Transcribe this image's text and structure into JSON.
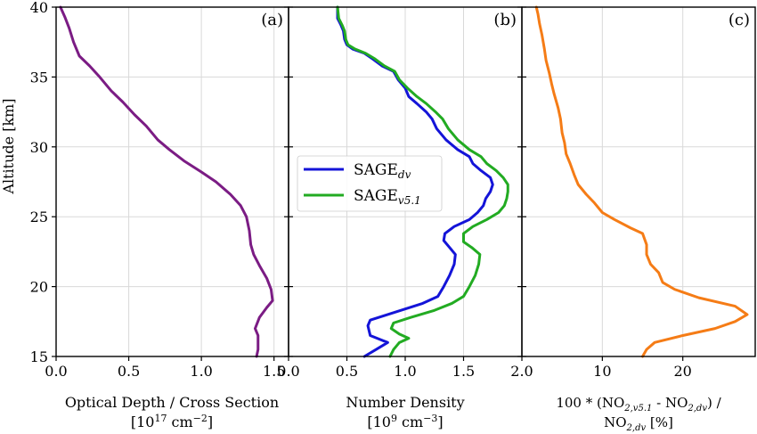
{
  "chart_data": [
    {
      "type": "line",
      "panel_label": "(a)",
      "xlabel_line1": "Optical Depth / Cross Section",
      "xlabel_line2": "[10",
      "xlabel_line2_sup": "17",
      "xlabel_line2_after": " cm",
      "xlabel_line2_sup2": "−2",
      "xlabel_line2_end": "]",
      "ylabel": "Altitude [km]",
      "xlim": [
        0.0,
        1.6
      ],
      "ylim": [
        15,
        40
      ],
      "xticks": [
        0.0,
        0.5,
        1.0,
        1.5
      ],
      "xtick_labels": [
        "0.0",
        "0.5",
        "1.0",
        "1.5"
      ],
      "yticks": [
        15,
        20,
        25,
        30,
        35,
        40
      ],
      "ytick_labels": [
        "15",
        "20",
        "25",
        "30",
        "35",
        "40"
      ],
      "grid": true,
      "series": [
        {
          "color": "#7b1c84",
          "points": [
            [
              1.38,
              15.0
            ],
            [
              1.39,
              15.5
            ],
            [
              1.39,
              16.5
            ],
            [
              1.37,
              17.0
            ],
            [
              1.4,
              17.8
            ],
            [
              1.45,
              18.5
            ],
            [
              1.49,
              19.0
            ],
            [
              1.48,
              19.8
            ],
            [
              1.45,
              20.6
            ],
            [
              1.4,
              21.5
            ],
            [
              1.36,
              22.3
            ],
            [
              1.34,
              23.0
            ],
            [
              1.33,
              24.0
            ],
            [
              1.31,
              25.0
            ],
            [
              1.27,
              25.8
            ],
            [
              1.2,
              26.6
            ],
            [
              1.1,
              27.5
            ],
            [
              1.0,
              28.2
            ],
            [
              0.88,
              29.0
            ],
            [
              0.78,
              29.8
            ],
            [
              0.7,
              30.5
            ],
            [
              0.62,
              31.5
            ],
            [
              0.54,
              32.3
            ],
            [
              0.46,
              33.2
            ],
            [
              0.38,
              34.0
            ],
            [
              0.3,
              35.0
            ],
            [
              0.23,
              35.8
            ],
            [
              0.16,
              36.5
            ],
            [
              0.12,
              37.5
            ],
            [
              0.09,
              38.5
            ],
            [
              0.06,
              39.3
            ],
            [
              0.03,
              40.0
            ]
          ]
        }
      ]
    },
    {
      "type": "line",
      "panel_label": "(b)",
      "xlabel_line1": "Number Density",
      "xlabel_line2": "[10",
      "xlabel_line2_sup": "9",
      "xlabel_line2_after": " cm",
      "xlabel_line2_sup2": "−3",
      "xlabel_line2_end": "]",
      "xlim": [
        0.0,
        2.0
      ],
      "ylim": [
        15,
        40
      ],
      "xticks": [
        0.0,
        0.5,
        1.0,
        1.5,
        2.0
      ],
      "xtick_labels": [
        "0.0",
        "0.5",
        "1.0",
        "1.5",
        "2.0"
      ],
      "grid": true,
      "legend": "center-left",
      "series": [
        {
          "name": "SAGE",
          "name_sub": "dv",
          "color": "#1414d8",
          "points": [
            [
              0.65,
              15.0
            ],
            [
              0.75,
              15.5
            ],
            [
              0.85,
              16.0
            ],
            [
              0.7,
              16.5
            ],
            [
              0.68,
              17.2
            ],
            [
              0.7,
              17.6
            ],
            [
              0.85,
              18.0
            ],
            [
              1.0,
              18.4
            ],
            [
              1.15,
              18.8
            ],
            [
              1.28,
              19.3
            ],
            [
              1.33,
              20.0
            ],
            [
              1.38,
              20.8
            ],
            [
              1.42,
              21.6
            ],
            [
              1.43,
              22.3
            ],
            [
              1.38,
              22.8
            ],
            [
              1.33,
              23.3
            ],
            [
              1.34,
              23.8
            ],
            [
              1.42,
              24.3
            ],
            [
              1.55,
              24.8
            ],
            [
              1.62,
              25.3
            ],
            [
              1.67,
              25.8
            ],
            [
              1.69,
              26.3
            ],
            [
              1.73,
              26.8
            ],
            [
              1.75,
              27.3
            ],
            [
              1.73,
              27.8
            ],
            [
              1.65,
              28.3
            ],
            [
              1.58,
              28.8
            ],
            [
              1.55,
              29.3
            ],
            [
              1.45,
              29.8
            ],
            [
              1.35,
              30.5
            ],
            [
              1.27,
              31.3
            ],
            [
              1.23,
              32.0
            ],
            [
              1.18,
              32.5
            ],
            [
              1.1,
              33.1
            ],
            [
              1.03,
              33.6
            ],
            [
              1.0,
              34.2
            ],
            [
              0.94,
              34.8
            ],
            [
              0.9,
              35.4
            ],
            [
              0.8,
              35.8
            ],
            [
              0.72,
              36.3
            ],
            [
              0.65,
              36.7
            ],
            [
              0.55,
              37.0
            ],
            [
              0.5,
              37.3
            ],
            [
              0.48,
              37.7
            ],
            [
              0.47,
              38.3
            ],
            [
              0.45,
              38.7
            ],
            [
              0.42,
              39.2
            ],
            [
              0.42,
              40.0
            ]
          ]
        },
        {
          "name": "SAGE",
          "name_sub": "v5.1",
          "color": "#22ab22",
          "points": [
            [
              0.87,
              15.0
            ],
            [
              0.9,
              15.5
            ],
            [
              0.95,
              16.0
            ],
            [
              1.03,
              16.3
            ],
            [
              0.95,
              16.6
            ],
            [
              0.88,
              17.0
            ],
            [
              0.9,
              17.4
            ],
            [
              1.05,
              17.8
            ],
            [
              1.25,
              18.3
            ],
            [
              1.4,
              18.8
            ],
            [
              1.5,
              19.3
            ],
            [
              1.55,
              20.0
            ],
            [
              1.6,
              20.8
            ],
            [
              1.63,
              21.6
            ],
            [
              1.64,
              22.3
            ],
            [
              1.57,
              22.8
            ],
            [
              1.5,
              23.2
            ],
            [
              1.5,
              23.8
            ],
            [
              1.58,
              24.3
            ],
            [
              1.7,
              24.8
            ],
            [
              1.8,
              25.3
            ],
            [
              1.85,
              25.8
            ],
            [
              1.87,
              26.3
            ],
            [
              1.88,
              26.8
            ],
            [
              1.88,
              27.3
            ],
            [
              1.84,
              27.8
            ],
            [
              1.78,
              28.3
            ],
            [
              1.7,
              28.8
            ],
            [
              1.65,
              29.3
            ],
            [
              1.55,
              29.8
            ],
            [
              1.45,
              30.5
            ],
            [
              1.37,
              31.3
            ],
            [
              1.32,
              32.0
            ],
            [
              1.26,
              32.5
            ],
            [
              1.18,
              33.1
            ],
            [
              1.1,
              33.6
            ],
            [
              1.02,
              34.2
            ],
            [
              0.95,
              34.8
            ],
            [
              0.91,
              35.4
            ],
            [
              0.82,
              35.8
            ],
            [
              0.74,
              36.3
            ],
            [
              0.66,
              36.7
            ],
            [
              0.57,
              37.0
            ],
            [
              0.51,
              37.3
            ],
            [
              0.49,
              37.7
            ],
            [
              0.48,
              38.3
            ],
            [
              0.46,
              38.7
            ],
            [
              0.43,
              39.2
            ],
            [
              0.42,
              40.0
            ]
          ]
        }
      ]
    },
    {
      "type": "line",
      "panel_label": "(c)",
      "xlabel_line1": "100 * (NO",
      "xlabel_c_parts": [
        "2,v5.1",
        " - NO",
        "2,dv",
        ") /"
      ],
      "xlabel_line2": "NO",
      "xlabel_line2_sub": "2,dv",
      "xlabel_line2_end": " [%]",
      "xlim": [
        0.0,
        29.0
      ],
      "ylim": [
        15,
        40
      ],
      "xticks": [
        10,
        20
      ],
      "xtick_labels": [
        "10",
        "20"
      ],
      "grid": true,
      "series": [
        {
          "color": "#f57c16",
          "points": [
            [
              15.0,
              15.0
            ],
            [
              15.5,
              15.5
            ],
            [
              16.5,
              16.0
            ],
            [
              20.0,
              16.5
            ],
            [
              24.0,
              17.0
            ],
            [
              26.5,
              17.5
            ],
            [
              28.0,
              18.0
            ],
            [
              26.5,
              18.6
            ],
            [
              22.0,
              19.2
            ],
            [
              19.0,
              19.8
            ],
            [
              17.5,
              20.3
            ],
            [
              17.0,
              21.0
            ],
            [
              16.0,
              21.6
            ],
            [
              15.5,
              22.3
            ],
            [
              15.5,
              23.0
            ],
            [
              15.0,
              23.8
            ],
            [
              13.5,
              24.2
            ],
            [
              11.5,
              24.8
            ],
            [
              10.0,
              25.3
            ],
            [
              9.0,
              26.0
            ],
            [
              8.0,
              26.6
            ],
            [
              7.0,
              27.3
            ],
            [
              6.5,
              28.0
            ],
            [
              6.0,
              28.8
            ],
            [
              5.5,
              29.5
            ],
            [
              5.3,
              30.3
            ],
            [
              5.0,
              31.0
            ],
            [
              4.8,
              32.0
            ],
            [
              4.5,
              32.8
            ],
            [
              4.0,
              33.8
            ],
            [
              3.7,
              34.5
            ],
            [
              3.4,
              35.3
            ],
            [
              3.0,
              36.2
            ],
            [
              2.8,
              37.0
            ],
            [
              2.5,
              38.0
            ],
            [
              2.2,
              38.8
            ],
            [
              2.0,
              39.5
            ],
            [
              1.8,
              40.0
            ]
          ]
        }
      ]
    }
  ]
}
